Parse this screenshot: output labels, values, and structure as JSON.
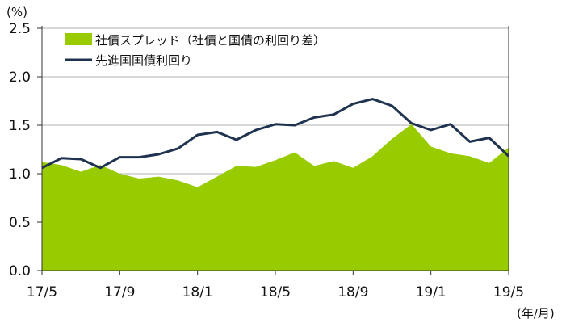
{
  "chart_data": {
    "type": "area",
    "title": "",
    "ylabel": "(%)",
    "xlabel": "(年/月)",
    "ylim": [
      0,
      2.5
    ],
    "yticks": [
      "0.0",
      "0.5",
      "1.0",
      "1.5",
      "2.0",
      "2.5"
    ],
    "x_tick_labels": [
      "17/5",
      "17/9",
      "18/1",
      "18/5",
      "18/9",
      "19/1",
      "19/5"
    ],
    "x": [
      "17/5",
      "17/6",
      "17/7",
      "17/8",
      "17/9",
      "17/10",
      "17/11",
      "17/12",
      "18/1",
      "18/2",
      "18/3",
      "18/4",
      "18/5",
      "18/6",
      "18/7",
      "18/8",
      "18/9",
      "18/10",
      "18/11",
      "18/12",
      "19/1",
      "19/2",
      "19/3",
      "19/4",
      "19/5"
    ],
    "grid": true,
    "legend_placement": "top-left",
    "series": [
      {
        "name": "社債スプレッド（社債と国債の利回り差）",
        "kind": "area",
        "color": "#99cc00",
        "values": [
          1.12,
          1.09,
          1.02,
          1.09,
          1.0,
          0.95,
          0.97,
          0.93,
          0.86,
          0.97,
          1.08,
          1.07,
          1.14,
          1.22,
          1.08,
          1.13,
          1.06,
          1.18,
          1.36,
          1.51,
          1.28,
          1.21,
          1.18,
          1.11,
          1.27
        ]
      },
      {
        "name": "先進国国債利回り",
        "kind": "line",
        "color": "#1f3350",
        "values": [
          1.06,
          1.16,
          1.15,
          1.06,
          1.17,
          1.17,
          1.2,
          1.26,
          1.4,
          1.43,
          1.35,
          1.45,
          1.51,
          1.5,
          1.58,
          1.61,
          1.72,
          1.77,
          1.7,
          1.52,
          1.45,
          1.51,
          1.33,
          1.37,
          1.18
        ]
      }
    ]
  }
}
